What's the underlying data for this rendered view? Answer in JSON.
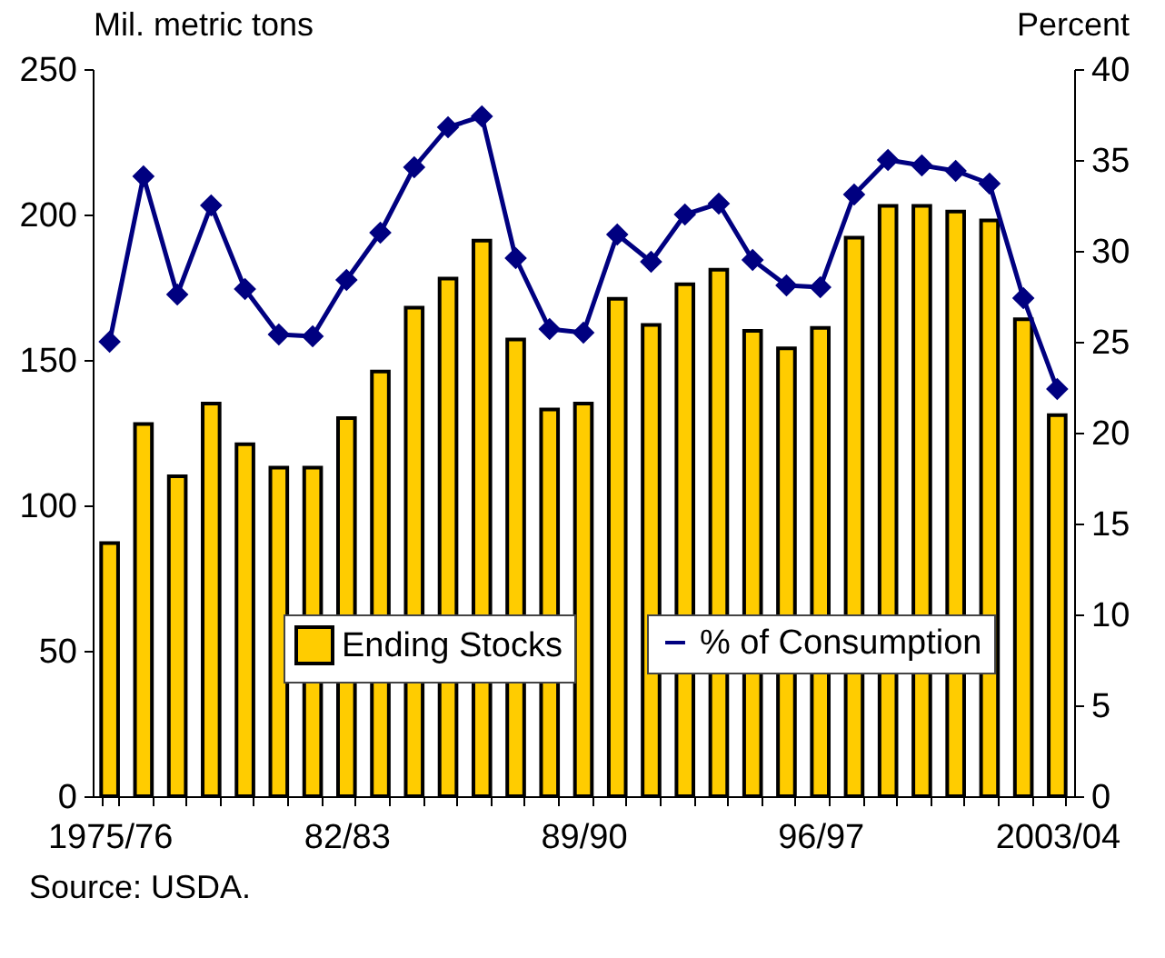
{
  "chart_data": {
    "type": "bar",
    "categories": [
      "1975/76",
      null,
      null,
      null,
      null,
      null,
      null,
      "82/83",
      null,
      null,
      null,
      null,
      null,
      null,
      "89/90",
      null,
      null,
      null,
      null,
      null,
      null,
      "96/97",
      null,
      null,
      null,
      null,
      null,
      null,
      "2003/04"
    ],
    "ylabel": "Mil. metric tons",
    "y2label": "Percent",
    "ylim": [
      0,
      250
    ],
    "yticks": [
      0,
      50,
      100,
      150,
      200,
      250
    ],
    "y2lim": [
      0,
      40
    ],
    "y2ticks": [
      0,
      5,
      10,
      15,
      20,
      25,
      30,
      35,
      40
    ],
    "series": [
      {
        "name": "Ending Stocks",
        "color": "#ffcc00",
        "values": [
          87,
          128,
          110,
          135,
          121,
          113,
          113,
          130,
          146,
          168,
          178,
          191,
          157,
          133,
          135,
          171,
          162,
          176,
          181,
          160,
          154,
          161,
          192,
          203,
          203,
          201,
          198,
          164,
          131
        ]
      },
      {
        "name": "% of Consumption",
        "type": "line",
        "axis": "y2",
        "color": "#000080",
        "marker": "diamond",
        "values": [
          25,
          34.1,
          27.6,
          32.5,
          27.9,
          25.4,
          25.3,
          28.4,
          31,
          34.6,
          36.8,
          37.4,
          29.6,
          25.7,
          25.5,
          30.9,
          29.4,
          32,
          32.6,
          29.5,
          28.1,
          28,
          33.1,
          35,
          34.7,
          34.4,
          33.7,
          27.4,
          22.4
        ]
      }
    ],
    "legend": "bottom",
    "grid": false,
    "annotations": [
      "Source: USDA."
    ]
  }
}
